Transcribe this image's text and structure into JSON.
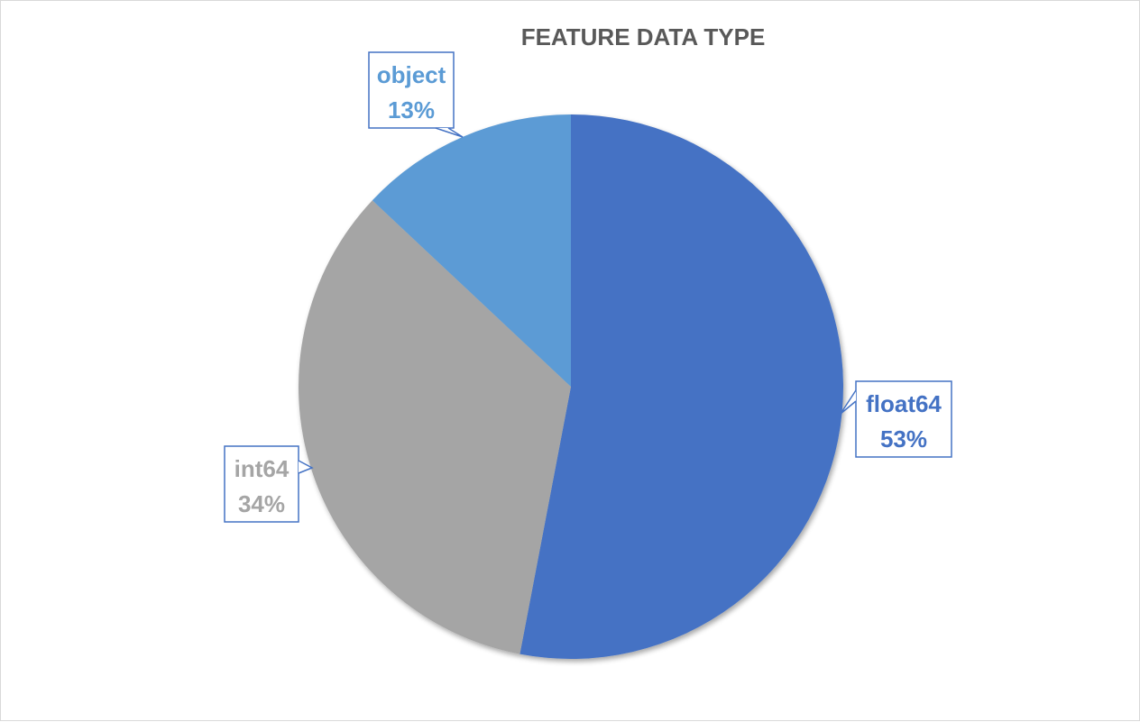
{
  "chart_data": {
    "type": "pie",
    "title": "FEATURE DATA TYPE",
    "legend": "none",
    "slices": [
      {
        "name": "float64",
        "value": 53,
        "percent_label": "53%",
        "color": "#4472c4"
      },
      {
        "name": "int64",
        "value": 34,
        "percent_label": "34%",
        "color": "#a5a5a5"
      },
      {
        "name": "object",
        "value": 13,
        "percent_label": "13%",
        "color": "#5b9bd5"
      }
    ],
    "label_box_border_color": "#4472c4"
  }
}
